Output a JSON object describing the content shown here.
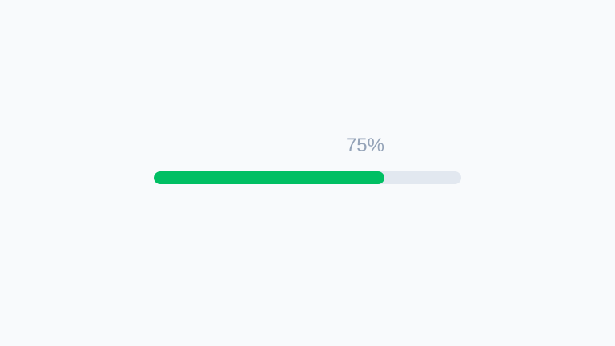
{
  "progress": {
    "value_percent": 75,
    "label": "75%",
    "fill_color": "#00bf63",
    "track_color": "#e2e8f0",
    "label_color": "#94a3b8"
  }
}
